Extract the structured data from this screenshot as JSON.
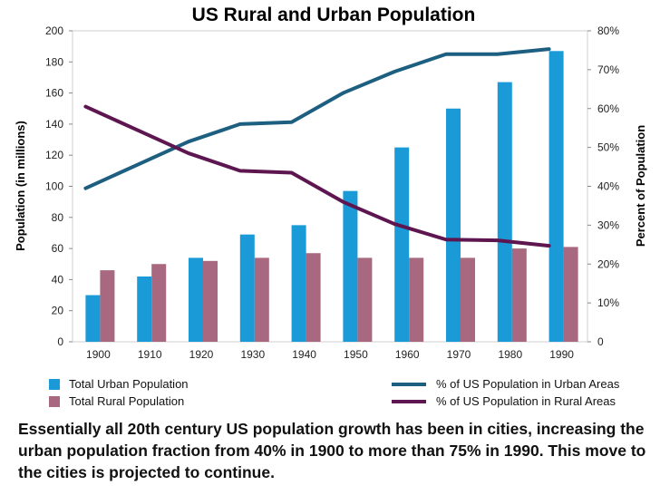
{
  "chart_data": {
    "type": "bar",
    "title": "US Rural and Urban Population",
    "categories": [
      "1900",
      "1910",
      "1920",
      "1930",
      "1940",
      "1950",
      "1960",
      "1970",
      "1980",
      "1990"
    ],
    "ylabel": "Population (in millions)",
    "y2label": "Percent of Population",
    "ylim": [
      0,
      200
    ],
    "yticks": [
      0,
      20,
      40,
      60,
      80,
      100,
      120,
      140,
      160,
      180,
      200
    ],
    "y2lim": [
      0,
      80
    ],
    "y2ticks": [
      "0",
      "10%",
      "20%",
      "30%",
      "40%",
      "50%",
      "60%",
      "70%",
      "80%"
    ],
    "series": [
      {
        "name": "Total Urban Population",
        "kind": "bar",
        "color": "#1a9ad6",
        "values": [
          30,
          42,
          54,
          69,
          75,
          97,
          125,
          150,
          167,
          187
        ]
      },
      {
        "name": "Total Rural Population",
        "kind": "bar",
        "color": "#a8687f",
        "values": [
          46,
          50,
          52,
          54,
          57,
          54,
          54,
          54,
          60,
          61
        ]
      },
      {
        "name": "% of US Population in Urban Areas",
        "kind": "line",
        "axis": "right",
        "color": "#1d5f80",
        "values": [
          39.5,
          45.5,
          51.5,
          56,
          56.5,
          64,
          69.5,
          74,
          74,
          75.3
        ]
      },
      {
        "name": "% of US Population in Rural Areas",
        "kind": "line",
        "axis": "right",
        "color": "#5e1650",
        "values": [
          60.5,
          54.5,
          48.5,
          44,
          43.5,
          36,
          30.3,
          26.3,
          26.1,
          24.7
        ]
      }
    ]
  },
  "caption": "Essentially all 20th century US population growth has been in cities, increasing the urban population fraction from 40% in 1900 to more than 75% in 1990.  This move to the cities is projected to continue."
}
